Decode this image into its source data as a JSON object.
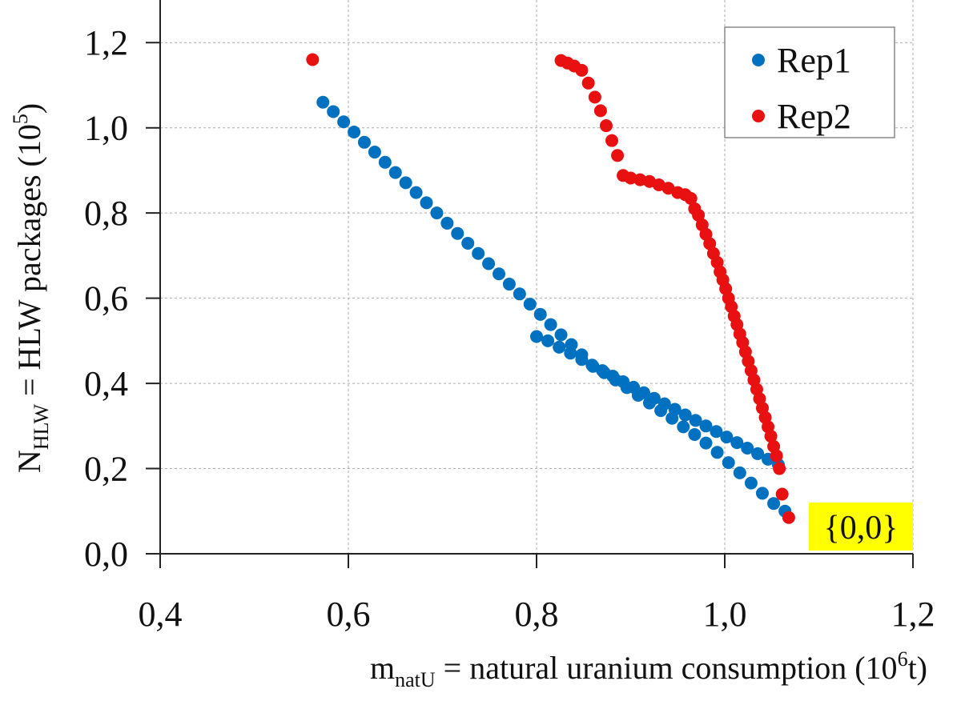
{
  "chart_data": {
    "type": "scatter",
    "xlabel": {
      "main": "m",
      "sub": "natU",
      "rest": " = natural uranium consumption (10",
      "sup": "6",
      "end": "t)"
    },
    "ylabel": {
      "main": "N",
      "sub": "HLW",
      "rest": " = HLW packages (10",
      "sup": "5",
      "end": ")"
    },
    "xlim": [
      0.4,
      1.2
    ],
    "ylim": [
      0.0,
      1.3
    ],
    "xticks": [
      {
        "value": 0.4,
        "label": "0,4"
      },
      {
        "value": 0.6,
        "label": "0,6"
      },
      {
        "value": 0.8,
        "label": "0,8"
      },
      {
        "value": 1.0,
        "label": "1,0"
      },
      {
        "value": 1.2,
        "label": "1,2"
      }
    ],
    "yticks": [
      {
        "value": 0.0,
        "label": "0,0"
      },
      {
        "value": 0.2,
        "label": "0,2"
      },
      {
        "value": 0.4,
        "label": "0,4"
      },
      {
        "value": 0.6,
        "label": "0,6"
      },
      {
        "value": 0.8,
        "label": "0,8"
      },
      {
        "value": 1.0,
        "label": "1,0"
      },
      {
        "value": 1.2,
        "label": "1,2"
      }
    ],
    "grid": true,
    "legend_position": "top-right",
    "series": [
      {
        "name": "Rep1",
        "color": "#0070C0",
        "points": [
          [
            0.573,
            1.06
          ],
          [
            0.584,
            1.038
          ],
          [
            0.595,
            1.014
          ],
          [
            0.606,
            0.99
          ],
          [
            0.617,
            0.966
          ],
          [
            0.628,
            0.943
          ],
          [
            0.639,
            0.919
          ],
          [
            0.65,
            0.895
          ],
          [
            0.661,
            0.871
          ],
          [
            0.672,
            0.848
          ],
          [
            0.683,
            0.824
          ],
          [
            0.694,
            0.8
          ],
          [
            0.705,
            0.776
          ],
          [
            0.716,
            0.752
          ],
          [
            0.727,
            0.729
          ],
          [
            0.738,
            0.705
          ],
          [
            0.749,
            0.681
          ],
          [
            0.76,
            0.657
          ],
          [
            0.771,
            0.633
          ],
          [
            0.782,
            0.61
          ],
          [
            0.793,
            0.586
          ],
          [
            0.804,
            0.562
          ],
          [
            0.815,
            0.538
          ],
          [
            0.826,
            0.514
          ],
          [
            0.837,
            0.491
          ],
          [
            0.848,
            0.467
          ],
          [
            0.859,
            0.443
          ],
          [
            0.87,
            0.43
          ],
          [
            0.881,
            0.417
          ],
          [
            0.892,
            0.404
          ],
          [
            0.903,
            0.391
          ],
          [
            0.914,
            0.378
          ],
          [
            0.925,
            0.365
          ],
          [
            0.936,
            0.352
          ],
          [
            0.947,
            0.339
          ],
          [
            0.958,
            0.326
          ],
          [
            0.969,
            0.313
          ],
          [
            0.98,
            0.3
          ],
          [
            0.991,
            0.287
          ],
          [
            1.002,
            0.274
          ],
          [
            1.013,
            0.261
          ],
          [
            1.024,
            0.248
          ],
          [
            1.035,
            0.235
          ],
          [
            1.046,
            0.222
          ],
          [
            1.057,
            0.209
          ],
          [
            0.8,
            0.51
          ],
          [
            0.812,
            0.5
          ],
          [
            0.824,
            0.485
          ],
          [
            0.836,
            0.471
          ],
          [
            0.848,
            0.456
          ],
          [
            0.86,
            0.44
          ],
          [
            0.872,
            0.425
          ],
          [
            0.884,
            0.408
          ],
          [
            0.896,
            0.39
          ],
          [
            0.908,
            0.372
          ],
          [
            0.92,
            0.354
          ],
          [
            0.932,
            0.336
          ],
          [
            0.944,
            0.318
          ],
          [
            0.956,
            0.298
          ],
          [
            0.968,
            0.28
          ],
          [
            0.98,
            0.26
          ],
          [
            0.992,
            0.238
          ],
          [
            1.004,
            0.214
          ],
          [
            1.016,
            0.19
          ],
          [
            1.028,
            0.166
          ],
          [
            1.04,
            0.142
          ],
          [
            1.052,
            0.118
          ],
          [
            1.064,
            0.1
          ]
        ]
      },
      {
        "name": "Rep2",
        "color": "#E81010",
        "points": [
          [
            0.562,
            1.16
          ],
          [
            0.826,
            1.158
          ],
          [
            0.833,
            1.152
          ],
          [
            0.84,
            1.145
          ],
          [
            0.848,
            1.135
          ],
          [
            0.855,
            1.105
          ],
          [
            0.862,
            1.072
          ],
          [
            0.868,
            1.04
          ],
          [
            0.874,
            1.005
          ],
          [
            0.88,
            0.97
          ],
          [
            0.886,
            0.935
          ],
          [
            0.892,
            0.888
          ],
          [
            0.9,
            0.882
          ],
          [
            0.91,
            0.878
          ],
          [
            0.92,
            0.874
          ],
          [
            0.93,
            0.866
          ],
          [
            0.94,
            0.858
          ],
          [
            0.95,
            0.848
          ],
          [
            0.958,
            0.843
          ],
          [
            0.964,
            0.834
          ],
          [
            0.968,
            0.81
          ],
          [
            0.972,
            0.795
          ],
          [
            0.976,
            0.772
          ],
          [
            0.98,
            0.75
          ],
          [
            0.984,
            0.728
          ],
          [
            0.988,
            0.705
          ],
          [
            0.992,
            0.684
          ],
          [
            0.995,
            0.662
          ],
          [
            0.998,
            0.643
          ],
          [
            1.001,
            0.622
          ],
          [
            1.004,
            0.6
          ],
          [
            1.007,
            0.58
          ],
          [
            1.01,
            0.558
          ],
          [
            1.013,
            0.538
          ],
          [
            1.016,
            0.516
          ],
          [
            1.019,
            0.496
          ],
          [
            1.022,
            0.474
          ],
          [
            1.025,
            0.452
          ],
          [
            1.028,
            0.43
          ],
          [
            1.031,
            0.408
          ],
          [
            1.034,
            0.386
          ],
          [
            1.037,
            0.364
          ],
          [
            1.04,
            0.342
          ],
          [
            1.043,
            0.32
          ],
          [
            1.046,
            0.298
          ],
          [
            1.049,
            0.276
          ],
          [
            1.052,
            0.252
          ],
          [
            1.055,
            0.23
          ],
          [
            1.058,
            0.2
          ],
          [
            1.061,
            0.14
          ],
          [
            1.068,
            0.085
          ]
        ]
      }
    ],
    "annotation": {
      "text": "{0,0}",
      "background": "#FFFF00"
    }
  }
}
